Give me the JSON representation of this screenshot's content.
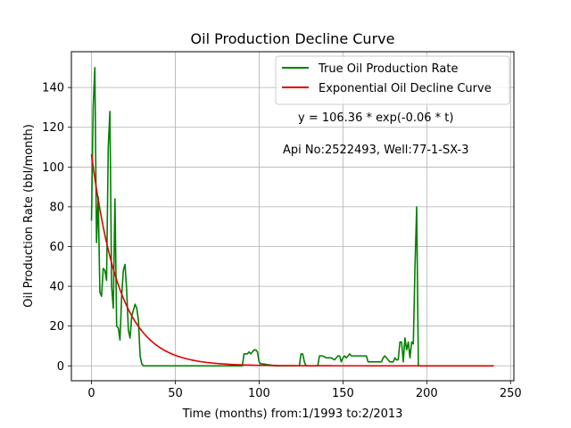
{
  "chart_data": {
    "type": "line",
    "title": "Oil Production Decline Curve",
    "xlabel": "Time (months) from:1/1993 to:2/2013",
    "ylabel": "Oil Production Rate (bbl/month)",
    "xlim": [
      -12,
      252
    ],
    "ylim": [
      -7.5,
      158
    ],
    "xticks": [
      0,
      50,
      100,
      150,
      200,
      250
    ],
    "yticks": [
      0,
      20,
      40,
      60,
      80,
      100,
      120,
      140
    ],
    "grid": true,
    "legend_placement": "top-right",
    "annotations": [
      "y = 106.36 * exp(-0.06 * t)",
      "Api No:2522493, Well:77-1-SX-3"
    ],
    "series": [
      {
        "name": "True Oil Production Rate",
        "color": "#008000",
        "x": [
          0,
          1,
          2,
          3,
          4,
          5,
          6,
          7,
          8,
          9,
          10,
          11,
          12,
          13,
          14,
          15,
          16,
          17,
          18,
          19,
          20,
          21,
          22,
          23,
          24,
          25,
          26,
          27,
          28,
          29,
          30,
          31,
          32,
          33,
          35,
          50,
          80,
          90,
          91,
          92,
          93,
          94,
          95,
          96,
          97,
          98,
          99,
          100,
          101,
          102,
          110,
          120,
          124,
          125,
          126,
          127,
          128,
          129,
          130,
          135,
          136,
          137,
          138,
          140,
          141,
          142,
          143,
          145,
          146,
          147,
          148,
          149,
          150,
          151,
          152,
          153,
          154,
          155,
          156,
          157,
          158,
          159,
          160,
          161,
          162,
          163,
          164,
          165,
          166,
          167,
          168,
          169,
          170,
          171,
          172,
          173,
          174,
          175,
          176,
          177,
          178,
          179,
          180,
          181,
          182,
          183,
          184,
          185,
          186,
          187,
          188,
          189,
          190,
          191,
          192,
          193,
          194,
          195,
          196,
          200,
          240
        ],
        "y": [
          73,
          130,
          150,
          62,
          85,
          37,
          35,
          49,
          48,
          43,
          110,
          128,
          40,
          29,
          84,
          20,
          19,
          13,
          35,
          48,
          51,
          38,
          18,
          14,
          25,
          28,
          31,
          29,
          23,
          5,
          1,
          0,
          0,
          0,
          0,
          0,
          0,
          0,
          6,
          6,
          6,
          7,
          6,
          7,
          8,
          8,
          7,
          2,
          1,
          1,
          0,
          0,
          0,
          6,
          6,
          2,
          0,
          0,
          0,
          0,
          5,
          5,
          5,
          4,
          4,
          4,
          4,
          3,
          4,
          5,
          5,
          2,
          4,
          5,
          4,
          5,
          6,
          5,
          5,
          5,
          5,
          5,
          5,
          5,
          5,
          5,
          5,
          2,
          2,
          2,
          2,
          2,
          2,
          2,
          2,
          2,
          4,
          5,
          4,
          3,
          2,
          2,
          2,
          4,
          3,
          3,
          12,
          12,
          2,
          14,
          8,
          12,
          4,
          12,
          11,
          50,
          80,
          0,
          0,
          0,
          0
        ]
      },
      {
        "name": "Exponential Oil Decline Curve",
        "color": "#e00000",
        "model": {
          "a": 106.36,
          "b": 0.06
        },
        "x_range": [
          0,
          240
        ]
      }
    ]
  }
}
